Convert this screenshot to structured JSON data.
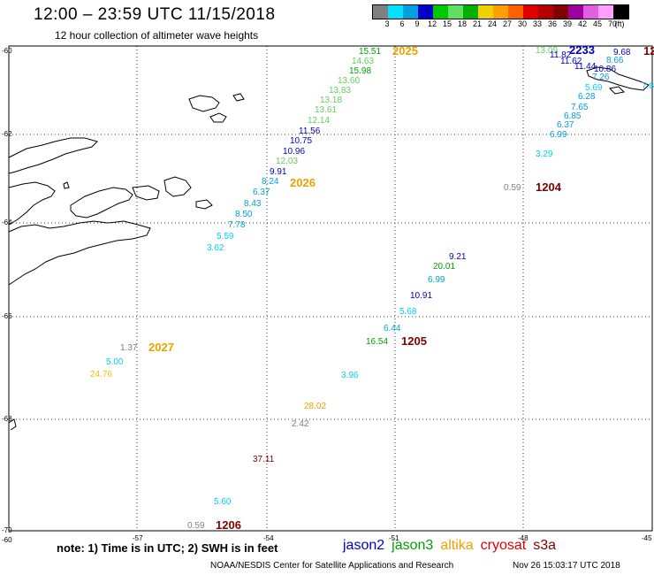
{
  "title": "12:00 – 23:59 UTC 11/15/2018",
  "subtitle": "12 hour collection of altimeter wave heights",
  "legend": {
    "colors": [
      "#808080",
      "#00e0ff",
      "#00a0e0",
      "#0000c8",
      "#00c800",
      "#60e060",
      "#00b000",
      "#f0d000",
      "#ffa000",
      "#ff6000",
      "#e00000",
      "#b40000",
      "#800000",
      "#a000a0",
      "#e060e0",
      "#ffa0ff",
      "#000000"
    ],
    "labels": [
      "3",
      "6",
      "9",
      "12",
      "15",
      "18",
      "21",
      "24",
      "27",
      "30",
      "33",
      "36",
      "39",
      "42",
      "45",
      "70",
      "(ft)"
    ]
  },
  "axes": {
    "lon_ticks": [
      "-57",
      "-54",
      "-51",
      "-48",
      "-45"
    ],
    "lat_ticks": [
      "-60",
      "-62",
      "-64",
      "-66",
      "-68",
      "-70"
    ],
    "corner_label": "-60"
  },
  "passes": [
    {
      "id": "2025",
      "color": "#f0a000"
    },
    {
      "id": "2026",
      "color": "#f0a000"
    },
    {
      "id": "2027",
      "color": "#f0a000"
    },
    {
      "id": "2233",
      "color": "#0000c8"
    },
    {
      "id": "12",
      "color": "#800000"
    },
    {
      "id": "1204",
      "color": "#800000"
    },
    {
      "id": "1205",
      "color": "#800000"
    },
    {
      "id": "1206",
      "color": "#800000"
    }
  ],
  "readings": [
    {
      "v": "15.51",
      "c": "#00a000"
    },
    {
      "v": "14.63",
      "c": "#60d060"
    },
    {
      "v": "15.98",
      "c": "#00a000"
    },
    {
      "v": "13.60",
      "c": "#60d060"
    },
    {
      "v": "13.83",
      "c": "#60d060"
    },
    {
      "v": "13.18",
      "c": "#60d060"
    },
    {
      "v": "13.61",
      "c": "#60d060"
    },
    {
      "v": "12.14",
      "c": "#60d060"
    },
    {
      "v": "11.56",
      "c": "#0000c8"
    },
    {
      "v": "10.75",
      "c": "#0000c8"
    },
    {
      "v": "10.96",
      "c": "#0000c8"
    },
    {
      "v": "12.03",
      "c": "#60d060"
    },
    {
      "v": "9.91",
      "c": "#0000c8"
    },
    {
      "v": "8.24",
      "c": "#00a0e0"
    },
    {
      "v": "6.37",
      "c": "#00a0e0"
    },
    {
      "v": "8.43",
      "c": "#00a0e0"
    },
    {
      "v": "8.50",
      "c": "#00a0e0"
    },
    {
      "v": "7.78",
      "c": "#00a0e0"
    },
    {
      "v": "5.59",
      "c": "#00d0ff"
    },
    {
      "v": "3.62",
      "c": "#00d0ff"
    },
    {
      "v": "13.09",
      "c": "#60d060"
    },
    {
      "v": "11.82",
      "c": "#0000c8"
    },
    {
      "v": "11.62",
      "c": "#0000c8"
    },
    {
      "v": "11.44",
      "c": "#0000c8"
    },
    {
      "v": "10.86",
      "c": "#0000c8"
    },
    {
      "v": "9.68",
      "c": "#0000c8"
    },
    {
      "v": "8.66",
      "c": "#00a0e0"
    },
    {
      "v": "7.26",
      "c": "#00a0e0"
    },
    {
      "v": "7.8",
      "c": "#00d0ff"
    },
    {
      "v": "5.69",
      "c": "#00d0ff"
    },
    {
      "v": "6.28",
      "c": "#00a0e0"
    },
    {
      "v": "7.65",
      "c": "#00a0e0"
    },
    {
      "v": "6.85",
      "c": "#00a0e0"
    },
    {
      "v": "6.37",
      "c": "#00a0e0"
    },
    {
      "v": "6.99",
      "c": "#00a0e0"
    },
    {
      "v": "3.29",
      "c": "#00d0ff"
    },
    {
      "v": "0.59",
      "c": "#808080"
    },
    {
      "v": "9.21",
      "c": "#0000c8"
    },
    {
      "v": "20.01",
      "c": "#00a000"
    },
    {
      "v": "6.99",
      "c": "#00a0e0"
    },
    {
      "v": "10.91",
      "c": "#0000c8"
    },
    {
      "v": "5.68",
      "c": "#00d0ff"
    },
    {
      "v": "6.44",
      "c": "#00a0e0"
    },
    {
      "v": "16.54",
      "c": "#00a000"
    },
    {
      "v": "3.96",
      "c": "#00d0ff"
    },
    {
      "v": "28.02",
      "c": "#f0a000"
    },
    {
      "v": "2.42",
      "c": "#808080"
    },
    {
      "v": "37.11",
      "c": "#800000"
    },
    {
      "v": "5.60",
      "c": "#00d0ff"
    },
    {
      "v": "0.59",
      "c": "#808080"
    },
    {
      "v": "1.37",
      "c": "#808080"
    },
    {
      "v": "5.00",
      "c": "#00d0ff"
    },
    {
      "v": "24.76",
      "c": "#f0c000"
    }
  ],
  "note": "note: 1) Time is in UTC; 2) SWH is in feet",
  "satellites": [
    {
      "name": "jason2",
      "color": "#0000c8"
    },
    {
      "name": "jason3",
      "color": "#00a000"
    },
    {
      "name": "altika",
      "color": "#f0a000"
    },
    {
      "name": "cryosat",
      "color": "#e00000"
    },
    {
      "name": "s3a",
      "color": "#800000"
    }
  ],
  "credit": "NOAA/NESDIS Center for Satellite Applications and Research",
  "timestamp": "Nov 26 15:03:17 UTC 2018"
}
